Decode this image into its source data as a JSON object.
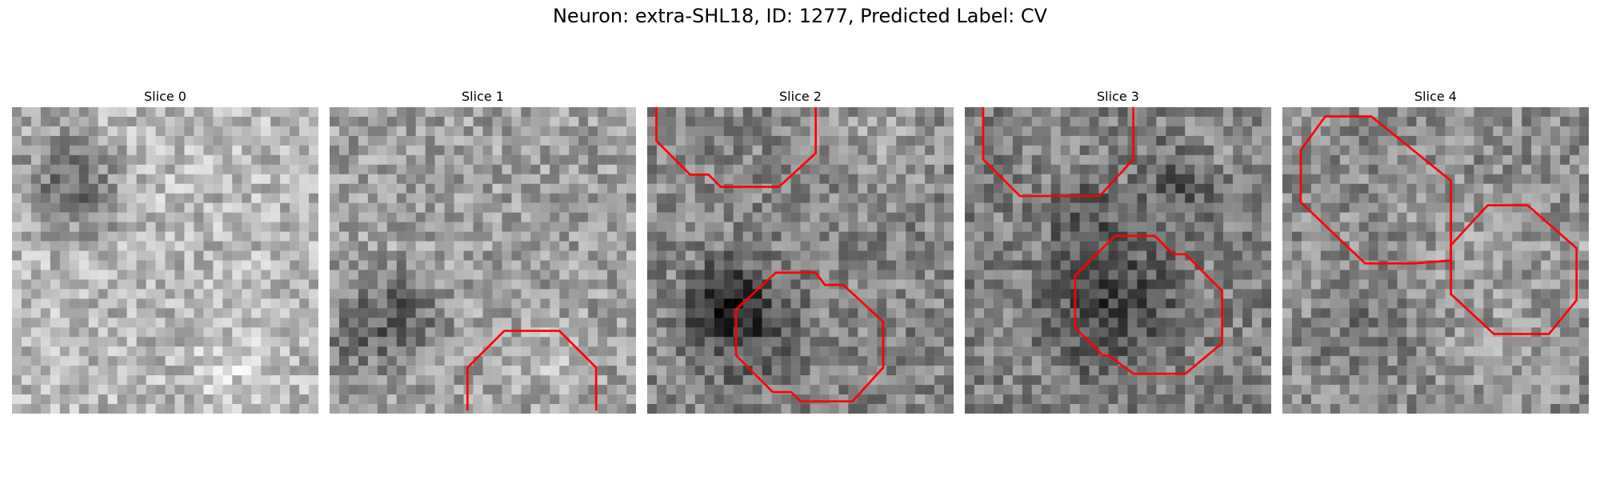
{
  "figure": {
    "title": "Neuron: extra-SHL18, ID: 1277, Predicted Label: CV"
  },
  "colors": {
    "contour": "#ff0000",
    "background": "#ffffff"
  },
  "panels": [
    {
      "title": "Slice 0",
      "seed": 11,
      "base": 0.72,
      "contours": []
    },
    {
      "title": "Slice 1",
      "seed": 23,
      "base": 0.62,
      "contours": [
        {
          "closed": false,
          "points": [
            [
              0.45,
              0.99
            ],
            [
              0.45,
              0.85
            ],
            [
              0.57,
              0.73
            ],
            [
              0.75,
              0.73
            ],
            [
              0.87,
              0.85
            ],
            [
              0.87,
              0.99
            ]
          ]
        }
      ]
    },
    {
      "title": "Slice 2",
      "seed": 37,
      "base": 0.52,
      "contours": [
        {
          "closed": false,
          "points": [
            [
              0.03,
              0.0
            ],
            [
              0.03,
              0.11
            ],
            [
              0.14,
              0.22
            ],
            [
              0.2,
              0.22
            ],
            [
              0.24,
              0.26
            ],
            [
              0.43,
              0.26
            ],
            [
              0.55,
              0.15
            ],
            [
              0.55,
              0.0
            ]
          ]
        },
        {
          "closed": true,
          "points": [
            [
              0.42,
              0.54
            ],
            [
              0.55,
              0.54
            ],
            [
              0.58,
              0.58
            ],
            [
              0.64,
              0.58
            ],
            [
              0.77,
              0.7
            ],
            [
              0.77,
              0.85
            ],
            [
              0.67,
              0.96
            ],
            [
              0.5,
              0.96
            ],
            [
              0.47,
              0.93
            ],
            [
              0.41,
              0.93
            ],
            [
              0.29,
              0.81
            ],
            [
              0.29,
              0.66
            ]
          ]
        }
      ]
    },
    {
      "title": "Slice 3",
      "seed": 53,
      "base": 0.5,
      "contours": [
        {
          "closed": false,
          "points": [
            [
              0.06,
              0.0
            ],
            [
              0.06,
              0.17
            ],
            [
              0.18,
              0.29
            ],
            [
              0.44,
              0.29
            ],
            [
              0.55,
              0.17
            ],
            [
              0.55,
              0.0
            ]
          ]
        },
        {
          "closed": true,
          "points": [
            [
              0.49,
              0.42
            ],
            [
              0.62,
              0.42
            ],
            [
              0.68,
              0.48
            ],
            [
              0.72,
              0.48
            ],
            [
              0.84,
              0.6
            ],
            [
              0.84,
              0.77
            ],
            [
              0.72,
              0.87
            ],
            [
              0.55,
              0.87
            ],
            [
              0.47,
              0.81
            ],
            [
              0.45,
              0.81
            ],
            [
              0.36,
              0.72
            ],
            [
              0.36,
              0.55
            ]
          ]
        }
      ]
    },
    {
      "title": "Slice 4",
      "seed": 71,
      "base": 0.55,
      "contours": [
        {
          "closed": true,
          "points": [
            [
              0.14,
              0.03
            ],
            [
              0.29,
              0.03
            ],
            [
              0.55,
              0.24
            ],
            [
              0.55,
              0.4
            ],
            [
              0.55,
              0.5
            ],
            [
              0.43,
              0.51
            ],
            [
              0.27,
              0.51
            ],
            [
              0.06,
              0.31
            ],
            [
              0.06,
              0.14
            ]
          ]
        },
        {
          "closed": true,
          "points": [
            [
              0.67,
              0.32
            ],
            [
              0.8,
              0.32
            ],
            [
              0.96,
              0.46
            ],
            [
              0.96,
              0.63
            ],
            [
              0.87,
              0.74
            ],
            [
              0.69,
              0.74
            ],
            [
              0.55,
              0.61
            ],
            [
              0.55,
              0.45
            ]
          ]
        }
      ]
    }
  ]
}
